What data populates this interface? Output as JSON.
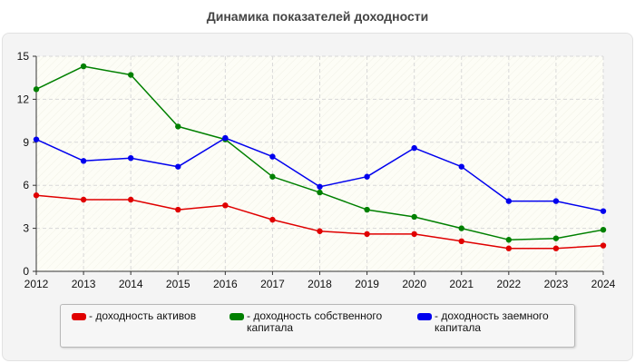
{
  "chart_data": {
    "type": "line",
    "title": "Динамика показателей доходности",
    "xlabel": "",
    "ylabel": "",
    "x": [
      "2012",
      "2013",
      "2014",
      "2015",
      "2016",
      "2017",
      "2018",
      "2019",
      "2020",
      "2021",
      "2022",
      "2023",
      "2024"
    ],
    "ylim": [
      0,
      15
    ],
    "yticks": [
      "0",
      "3",
      "6",
      "9",
      "12",
      "15"
    ],
    "grid": true,
    "legend_position": "bottom",
    "series": [
      {
        "name": "- доходность активов",
        "color": "#e00000",
        "values": [
          5.3,
          5.0,
          5.0,
          4.3,
          4.6,
          3.6,
          2.8,
          2.6,
          2.6,
          2.1,
          1.6,
          1.6,
          1.8
        ]
      },
      {
        "name": "- доходность собственного\nкапитала",
        "color": "#008000",
        "values": [
          12.7,
          14.3,
          13.7,
          10.1,
          9.2,
          6.6,
          5.5,
          4.3,
          3.8,
          3.0,
          2.2,
          2.3,
          2.9
        ]
      },
      {
        "name": "- доходность заемного\nкапитала",
        "color": "#0000ee",
        "values": [
          9.2,
          7.7,
          7.9,
          7.3,
          9.3,
          8.0,
          5.9,
          6.6,
          8.6,
          7.3,
          4.9,
          4.9,
          4.2
        ]
      }
    ]
  }
}
